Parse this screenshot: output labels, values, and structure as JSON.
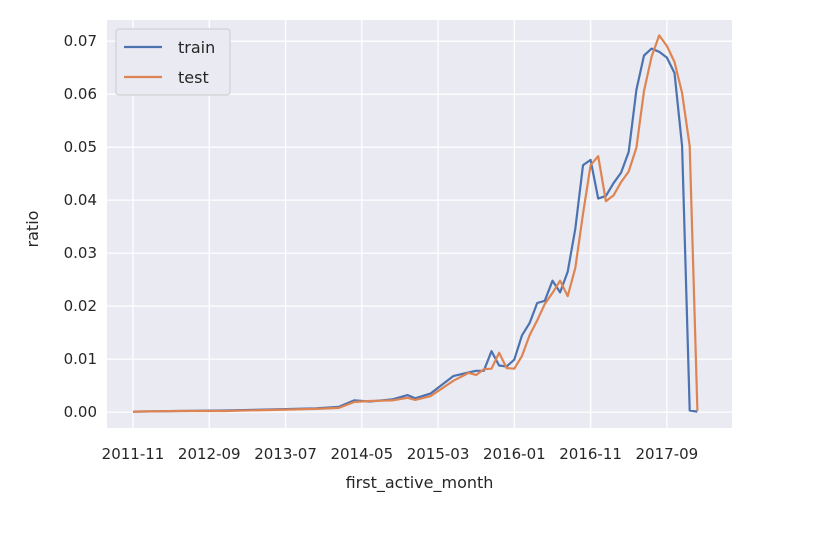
{
  "chart_data": {
    "type": "line",
    "xlabel": "first_active_month",
    "ylabel": "ratio",
    "x_start": "2011-11",
    "x_end": "2018-02",
    "xticks": [
      "2011-11",
      "2012-09",
      "2013-07",
      "2014-05",
      "2015-03",
      "2016-01",
      "2016-11",
      "2017-09"
    ],
    "yticks": [
      "0.00",
      "0.01",
      "0.02",
      "0.03",
      "0.04",
      "0.05",
      "0.06",
      "0.07"
    ],
    "ylim": [
      -0.003,
      0.074
    ],
    "grid": true,
    "legend_position": "upper-left",
    "series": [
      {
        "name": "train",
        "color": "#4c72b0",
        "points": [
          [
            "2011-11",
            0.0001
          ],
          [
            "2012-05",
            0.0002
          ],
          [
            "2012-11",
            0.0003
          ],
          [
            "2013-05",
            0.0005
          ],
          [
            "2013-11",
            0.0007
          ],
          [
            "2014-02",
            0.001
          ],
          [
            "2014-04",
            0.0022
          ],
          [
            "2014-06",
            0.002
          ],
          [
            "2014-09",
            0.0024
          ],
          [
            "2014-11",
            0.0032
          ],
          [
            "2014-12",
            0.0026
          ],
          [
            "2015-02",
            0.0035
          ],
          [
            "2015-05",
            0.0068
          ],
          [
            "2015-07",
            0.0075
          ],
          [
            "2015-08",
            0.0078
          ],
          [
            "2015-09",
            0.0078
          ],
          [
            "2015-10",
            0.0115
          ],
          [
            "2015-11",
            0.0088
          ],
          [
            "2015-12",
            0.0086
          ],
          [
            "2016-01",
            0.0099
          ],
          [
            "2016-02",
            0.0145
          ],
          [
            "2016-03",
            0.0168
          ],
          [
            "2016-04",
            0.0206
          ],
          [
            "2016-05",
            0.021
          ],
          [
            "2016-06",
            0.0248
          ],
          [
            "2016-07",
            0.0226
          ],
          [
            "2016-08",
            0.0265
          ],
          [
            "2016-09",
            0.0346
          ],
          [
            "2016-10",
            0.0466
          ],
          [
            "2016-11",
            0.0476
          ],
          [
            "2016-12",
            0.0403
          ],
          [
            "2017-01",
            0.0408
          ],
          [
            "2017-02",
            0.0432
          ],
          [
            "2017-03",
            0.0452
          ],
          [
            "2017-04",
            0.0491
          ],
          [
            "2017-05",
            0.0608
          ],
          [
            "2017-06",
            0.0673
          ],
          [
            "2017-07",
            0.0686
          ],
          [
            "2017-08",
            0.068
          ],
          [
            "2017-09",
            0.0669
          ],
          [
            "2017-10",
            0.064
          ],
          [
            "2017-11",
            0.0502
          ],
          [
            "2017-12",
            0.0003
          ],
          [
            "2018-01",
            0.0001
          ]
        ]
      },
      {
        "name": "test",
        "color": "#dd8452",
        "points": [
          [
            "2011-11",
            0.0001
          ],
          [
            "2012-05",
            0.0002
          ],
          [
            "2012-11",
            0.0002
          ],
          [
            "2013-05",
            0.0004
          ],
          [
            "2013-11",
            0.0006
          ],
          [
            "2014-02",
            0.0008
          ],
          [
            "2014-04",
            0.0019
          ],
          [
            "2014-06",
            0.0021
          ],
          [
            "2014-09",
            0.0022
          ],
          [
            "2014-11",
            0.0027
          ],
          [
            "2014-12",
            0.0023
          ],
          [
            "2015-02",
            0.003
          ],
          [
            "2015-05",
            0.0059
          ],
          [
            "2015-07",
            0.0074
          ],
          [
            "2015-08",
            0.007
          ],
          [
            "2015-09",
            0.0081
          ],
          [
            "2015-10",
            0.0082
          ],
          [
            "2015-11",
            0.0112
          ],
          [
            "2015-12",
            0.0083
          ],
          [
            "2016-01",
            0.0082
          ],
          [
            "2016-02",
            0.0106
          ],
          [
            "2016-03",
            0.0145
          ],
          [
            "2016-04",
            0.0173
          ],
          [
            "2016-05",
            0.0204
          ],
          [
            "2016-06",
            0.0225
          ],
          [
            "2016-07",
            0.0248
          ],
          [
            "2016-08",
            0.0219
          ],
          [
            "2016-09",
            0.0272
          ],
          [
            "2016-10",
            0.0374
          ],
          [
            "2016-11",
            0.0466
          ],
          [
            "2016-12",
            0.0483
          ],
          [
            "2017-01",
            0.0398
          ],
          [
            "2017-02",
            0.0409
          ],
          [
            "2017-03",
            0.0434
          ],
          [
            "2017-04",
            0.0454
          ],
          [
            "2017-05",
            0.0499
          ],
          [
            "2017-06",
            0.0606
          ],
          [
            "2017-07",
            0.0671
          ],
          [
            "2017-08",
            0.0711
          ],
          [
            "2017-09",
            0.0691
          ],
          [
            "2017-10",
            0.0661
          ],
          [
            "2017-11",
            0.0602
          ],
          [
            "2017-12",
            0.0502
          ],
          [
            "2018-01",
            0.0003
          ]
        ]
      }
    ]
  }
}
